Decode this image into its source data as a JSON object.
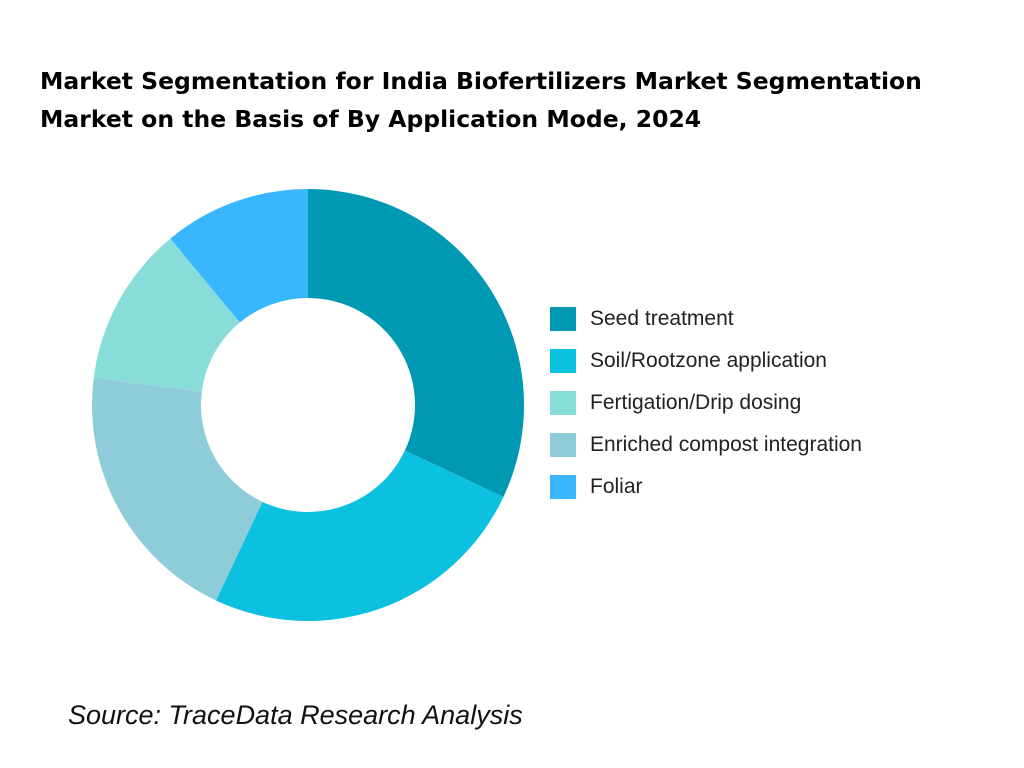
{
  "chart_data": {
    "type": "pie",
    "donut": true,
    "title": "Market Segmentation for India Biofertilizers Market Segmentation Market on the Basis of By Application Mode, 2024",
    "slices": [
      {
        "label": "Seed treatment",
        "value": 32,
        "color": "#0099B4"
      },
      {
        "label": "Soil/Rootzone application",
        "value": 25,
        "color": "#0CC0DF"
      },
      {
        "label": "Enriched compost integration",
        "value": 20,
        "color": "#8ECCD9"
      },
      {
        "label": "Fertigation/Drip dosing",
        "value": 12,
        "color": "#88DDD9"
      },
      {
        "label": "Foliar",
        "value": 11,
        "color": "#38B6FF"
      }
    ],
    "legend": {
      "placement": "right",
      "entries": [
        {
          "label": "Seed treatment",
          "color": "#0099B4"
        },
        {
          "label": "Soil/Rootzone application",
          "color": "#0CC0DF"
        },
        {
          "label": "Fertigation/Drip dosing",
          "color": "#88DDD9"
        },
        {
          "label": "Enriched compost integration",
          "color": "#8ECCD9"
        },
        {
          "label": "Foliar",
          "color": "#38B6FF"
        }
      ]
    }
  },
  "source": "Source: TraceData Research Analysis"
}
